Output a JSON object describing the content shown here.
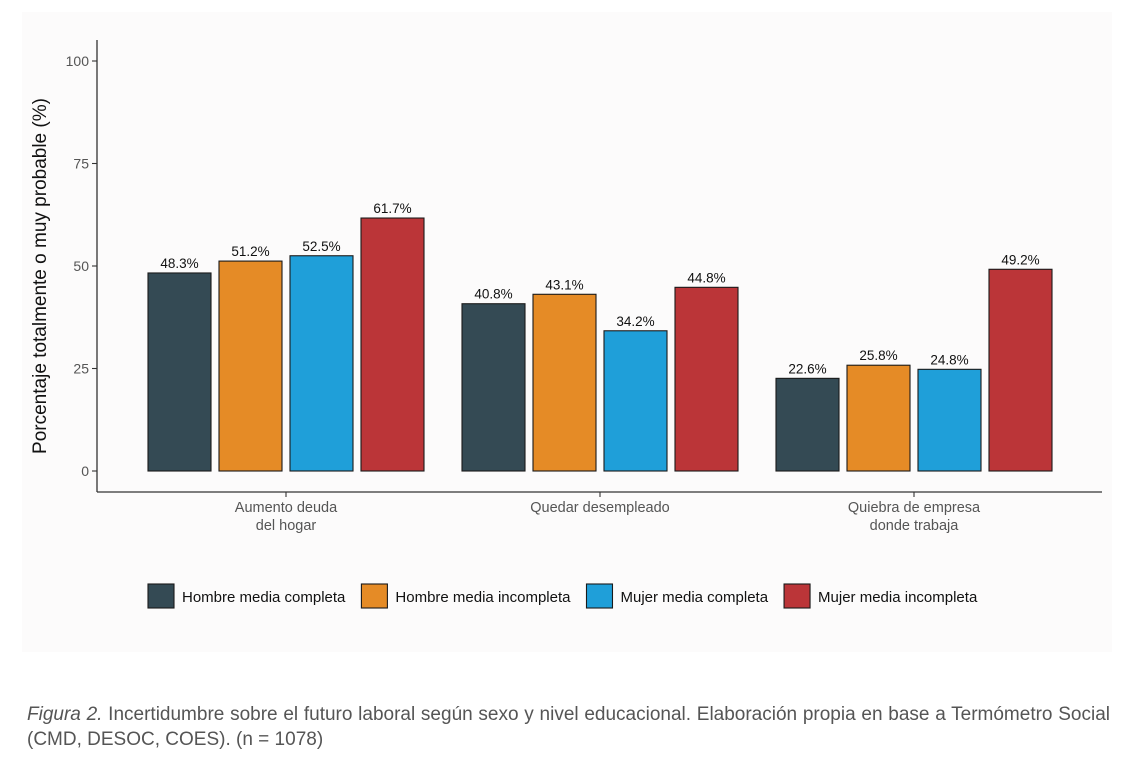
{
  "chart_data": {
    "type": "bar",
    "ylabel": "Porcentaje totalmente o muy probable (%)",
    "ylim": [
      0,
      100
    ],
    "yticks": [
      0,
      25,
      50,
      75,
      100
    ],
    "categories": [
      "Aumento deuda\ndel hogar",
      "Quedar desempleado",
      "Quiebra de empresa\ndonde trabaja"
    ],
    "series": [
      {
        "name": "Hombre media completa",
        "color": "#344a54",
        "values": [
          48.3,
          40.8,
          22.6
        ],
        "labels": [
          "48.3%",
          "40.8%",
          "22.6%"
        ]
      },
      {
        "name": "Hombre media incompleta",
        "color": "#e58b26",
        "values": [
          51.2,
          43.1,
          25.8
        ],
        "labels": [
          "51.2%",
          "43.1%",
          "25.8%"
        ]
      },
      {
        "name": "Mujer media completa",
        "color": "#1f9fd9",
        "values": [
          52.5,
          34.2,
          24.8
        ],
        "labels": [
          "52.5%",
          "34.2%",
          "24.8%"
        ]
      },
      {
        "name": "Mujer media incompleta",
        "color": "#bb3538",
        "values": [
          61.7,
          44.8,
          49.2
        ],
        "labels": [
          "61.7%",
          "44.8%",
          "49.2%"
        ]
      }
    ],
    "grid": false,
    "legend_position": "bottom"
  },
  "caption": {
    "figure_label": "Figura 2.",
    "text": " Incertidumbre sobre el futuro laboral según sexo y nivel educacional. Elaboración propia en base a Termómetro Social (CMD, DESOC, COES). (n = 1078)"
  }
}
